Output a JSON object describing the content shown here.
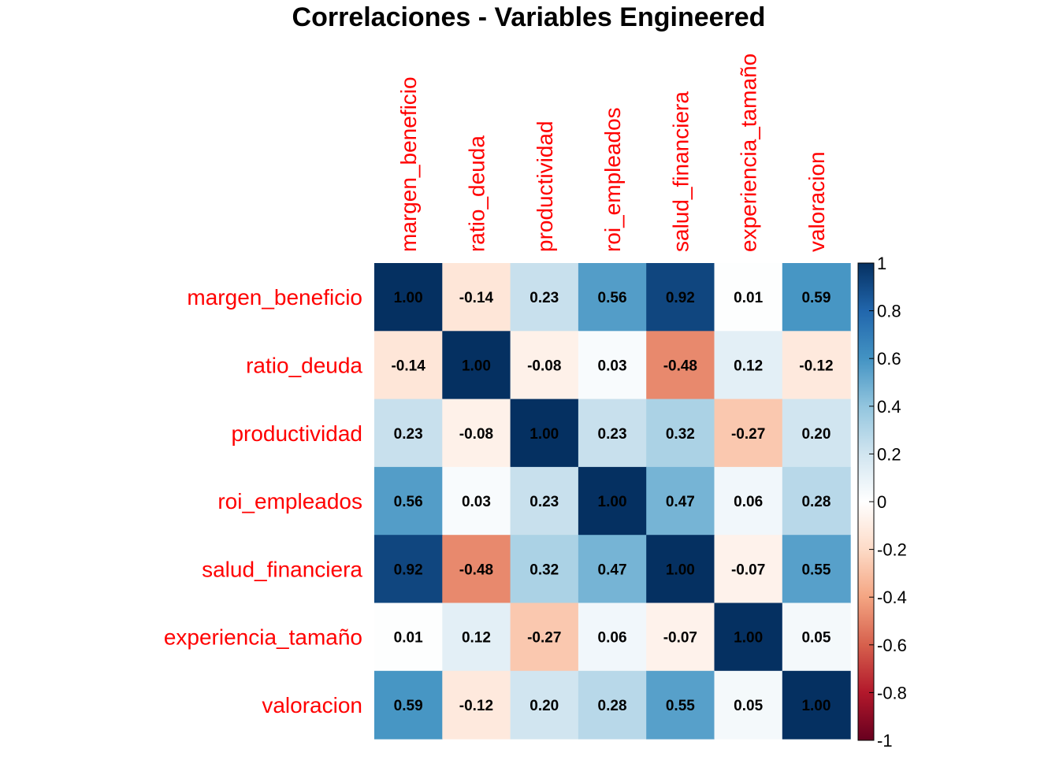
{
  "chart_data": {
    "type": "heatmap",
    "title": "Correlaciones - Variables Engineered",
    "variables": [
      "margen_beneficio",
      "ratio_deuda",
      "productividad",
      "roi_empleados",
      "salud_financiera",
      "experiencia_tamaño",
      "valoracion"
    ],
    "column_labels_visible": [
      "margen_beneficio",
      "ratio_deuda",
      "productividad",
      "roi_empleados",
      "salud_financiera",
      "experiencia_tamaño",
      "valoracion"
    ],
    "matrix": [
      [
        1.0,
        -0.14,
        0.23,
        0.56,
        0.92,
        0.01,
        0.59
      ],
      [
        -0.14,
        1.0,
        -0.08,
        0.03,
        -0.48,
        0.12,
        -0.12
      ],
      [
        0.23,
        -0.08,
        1.0,
        0.23,
        0.32,
        -0.27,
        0.2
      ],
      [
        0.56,
        0.03,
        0.23,
        1.0,
        0.47,
        0.06,
        0.28
      ],
      [
        0.92,
        -0.48,
        0.32,
        0.47,
        1.0,
        -0.07,
        0.55
      ],
      [
        0.01,
        0.12,
        -0.27,
        0.06,
        -0.07,
        1.0,
        0.05
      ],
      [
        0.59,
        -0.12,
        0.2,
        0.28,
        0.55,
        0.05,
        1.0
      ]
    ],
    "cell_labels": [
      [
        "1.00",
        "-0.14",
        "0.23",
        "0.56",
        "0.92",
        "0.01",
        "0.59"
      ],
      [
        "-0.14",
        "1.00",
        "-0.08",
        "0.03",
        "-0.48",
        "0.12",
        "-0.12"
      ],
      [
        "0.23",
        "-0.08",
        "1.00",
        "0.23",
        "0.32",
        "-0.27",
        "0.20"
      ],
      [
        "0.56",
        "0.03",
        "0.23",
        "1.00",
        "0.47",
        "0.06",
        "0.28"
      ],
      [
        "0.92",
        "-0.48",
        "0.32",
        "0.47",
        "1.00",
        "-0.07",
        "0.55"
      ],
      [
        "0.01",
        "0.12",
        "-0.27",
        "0.06",
        "-0.07",
        "1.00",
        "0.05"
      ],
      [
        "0.59",
        "-0.12",
        "0.20",
        "0.28",
        "0.55",
        "0.05",
        "1.00"
      ]
    ],
    "color_scale": {
      "range": [
        -1,
        1
      ],
      "stops": [
        "#67001F",
        "#B2182B",
        "#D6604D",
        "#F4A582",
        "#FDDBC7",
        "#FFFFFF",
        "#D1E5F0",
        "#92C5DE",
        "#4393C3",
        "#2166AC",
        "#053061"
      ],
      "ticks": [
        1,
        0.8,
        0.6,
        0.4,
        0.2,
        0,
        -0.2,
        -0.4,
        -0.6,
        -0.8,
        -1
      ],
      "tick_labels": [
        "1",
        "0.8",
        "0.6",
        "0.4",
        "0.2",
        "0",
        "-0.2",
        "-0.4",
        "-0.6",
        "-0.8",
        "-1"
      ]
    },
    "label_color": "#FF0000",
    "legend": "right"
  }
}
